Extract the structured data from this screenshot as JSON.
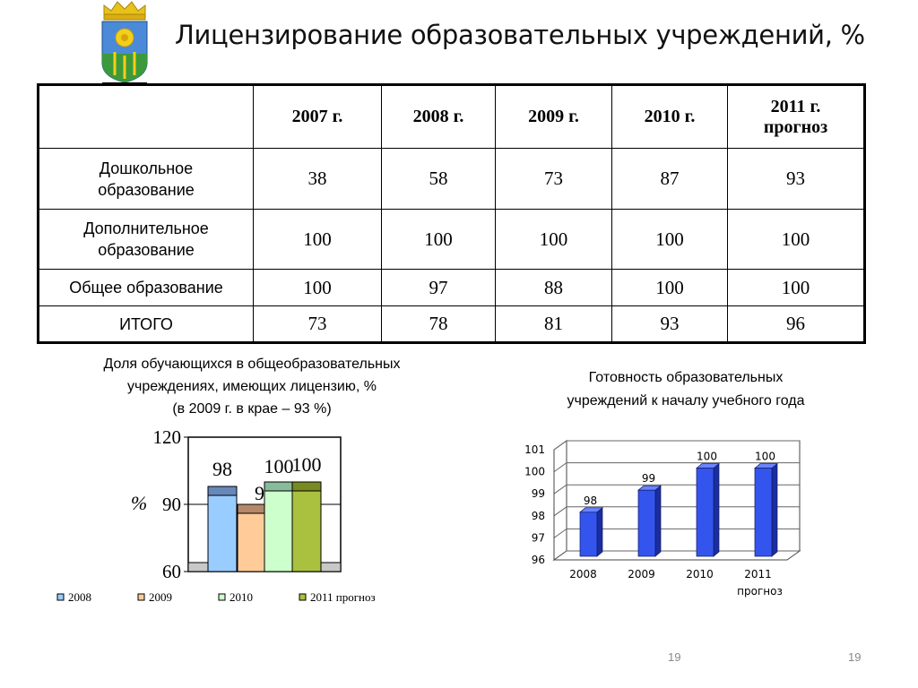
{
  "title": "Лицензирование образовательных учреждений, %",
  "table": {
    "headers": [
      "",
      "2007 г.",
      "2008 г.",
      "2009 г.",
      "2010 г.",
      "2011 г.\nпрогноз"
    ],
    "rows": [
      {
        "label": "Дошкольное\nобразование",
        "values": [
          "38",
          "58",
          "73",
          "87",
          "93"
        ]
      },
      {
        "label": "Дополнительное\nобразование",
        "values": [
          "100",
          "100",
          "100",
          "100",
          "100"
        ]
      },
      {
        "label": "Общее образование",
        "values": [
          "100",
          "97",
          "88",
          "100",
          "100"
        ]
      },
      {
        "label": "ИТОГО",
        "values": [
          "73",
          "78",
          "81",
          "93",
          "96"
        ]
      }
    ]
  },
  "caption_left": {
    "line1": "Доля обучающихся в общеобразовательных",
    "line2": "учреждениях, имеющих лицензию, %",
    "line3": "(в 2009 г. в крае – 93 %)"
  },
  "caption_right": {
    "line1": "Готовность образовательных",
    "line2": "учреждений к началу учебного года"
  },
  "page_numbers": [
    "19",
    "19"
  ],
  "chart_data": [
    {
      "type": "bar",
      "title": "",
      "ylabel": "%",
      "ylim": [
        60,
        120
      ],
      "yticks": [
        "120",
        "90",
        "60"
      ],
      "series": [
        {
          "name": "2008",
          "value": 98,
          "label": "98",
          "color": "#99ccff",
          "top_color": "#6688bb"
        },
        {
          "name": "2009",
          "value": 90,
          "label": "90",
          "color": "#ffcc99",
          "top_color": "#b48868"
        },
        {
          "name": "2010",
          "value": 100,
          "label": "100",
          "color": "#ccffcc",
          "top_color": "#88bb99"
        },
        {
          "name": "2011 прогноз",
          "value": 100,
          "label": "100",
          "color": "#a9c13e",
          "top_color": "#7a8a22"
        }
      ]
    },
    {
      "type": "bar",
      "title": "",
      "categories": [
        "2008",
        "2009",
        "2010",
        "2011\nпрогноз"
      ],
      "values": [
        98,
        99,
        100,
        100
      ],
      "labels": [
        "98",
        "99",
        "100",
        "100"
      ],
      "ylim": [
        96,
        101
      ],
      "yticks": [
        "101",
        "100",
        "99",
        "98",
        "97",
        "96"
      ],
      "color": "#3355ee"
    }
  ]
}
